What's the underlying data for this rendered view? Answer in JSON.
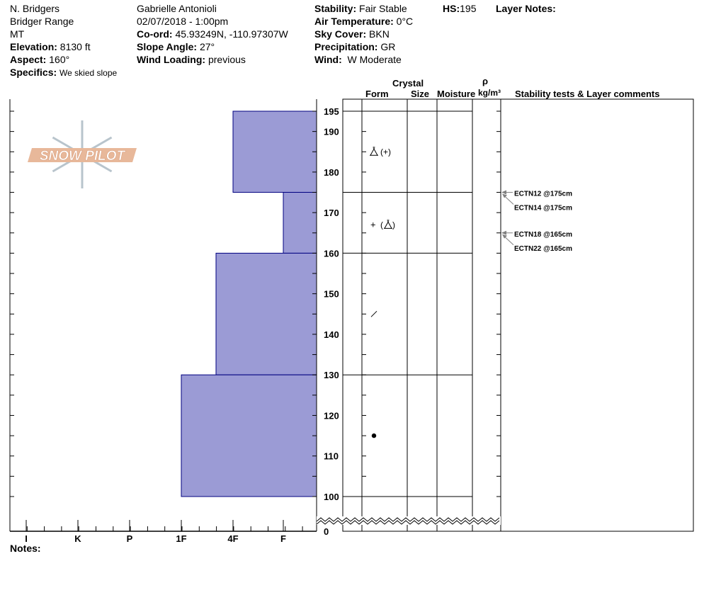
{
  "header": {
    "location": "N. Bridgers",
    "range": "Bridger Range",
    "state": "MT",
    "elevation_label": "Elevation:",
    "elevation": "8130 ft",
    "aspect_label": "Aspect:",
    "aspect": "160°",
    "specifics_label": "Specifics:",
    "specifics": "We skied slope",
    "observer": "Gabrielle Antonioli",
    "datetime": "02/07/2018 - 1:00pm",
    "coord_label": "Co-ord:",
    "coord": "45.93249N, -110.97307W",
    "slope_label": "Slope Angle:",
    "slope": "27°",
    "wind_loading_label": "Wind Loading:",
    "wind_loading": "previous",
    "stability_label": "Stability:",
    "stability": "Fair Stable",
    "air_temp_label": "Air Temperature:",
    "air_temp": "0°C",
    "sky_label": "Sky Cover:",
    "sky": "BKN",
    "precip_label": "Precipitation:",
    "precip": "GR",
    "wind_label": "Wind:",
    "wind": "W Moderate",
    "hs_label": "HS:",
    "hs": "195",
    "layer_notes_label": "Layer Notes:"
  },
  "columns": {
    "crystal": "Crystal",
    "form": "Form",
    "size": "Size",
    "moisture": "Moisture",
    "rho": "ρ",
    "density": "kg/m³",
    "comments": "Stability tests & Layer comments"
  },
  "hardness_axis": [
    "I",
    "K",
    "P",
    "1F",
    "4F",
    "F"
  ],
  "depth_ticks": [
    "195",
    "190",
    "180",
    "170",
    "160",
    "150",
    "140",
    "130",
    "120",
    "110",
    "100",
    "0"
  ],
  "layers": [
    {
      "top": 195,
      "bottom": 175,
      "hardness": "4F",
      "form_symbol": "faceted-rounded (+)",
      "form_center": 185
    },
    {
      "top": 175,
      "bottom": 160,
      "hardness": "F",
      "form_symbol": "+ (faceted-rounded)",
      "form_center": 167
    },
    {
      "top": 160,
      "bottom": 130,
      "hardness": "4F-",
      "form_symbol": "decomposing",
      "form_center": 145
    },
    {
      "top": 130,
      "bottom": 100,
      "hardness": "1F",
      "form_symbol": "rounded",
      "form_center": 115
    }
  ],
  "tests": [
    {
      "label": "ECTN12 @175cm",
      "depth": 175
    },
    {
      "label": "ECTN14 @175cm",
      "depth": 175
    },
    {
      "label": "ECTN18 @165cm",
      "depth": 165
    },
    {
      "label": "ECTN22 @165cm",
      "depth": 165
    }
  ],
  "notes_label": "Notes:",
  "logo_text": "SNOW PILOT",
  "colors": {
    "layer_fill": "#9b9bd5",
    "layer_stroke": "#000080",
    "arrow": "#808080",
    "logo": "#e8b89a"
  }
}
